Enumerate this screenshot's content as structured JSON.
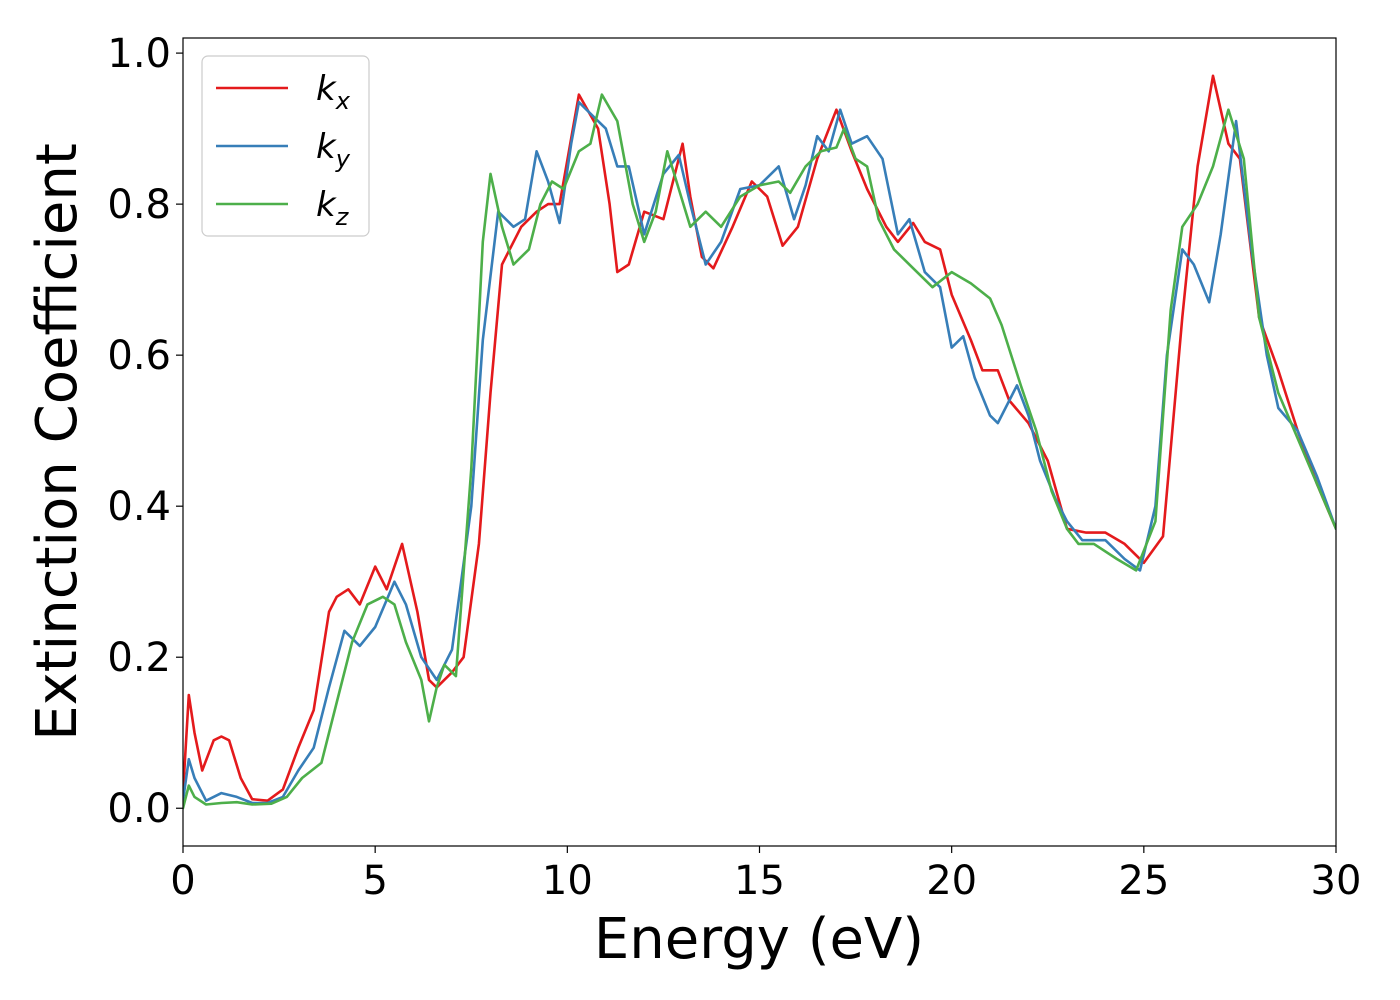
{
  "chart_data": {
    "type": "line",
    "title": "",
    "xlabel": "Energy (eV)",
    "ylabel": "Extinction Coefficient",
    "xlim": [
      0,
      30
    ],
    "ylim": [
      -0.05,
      1.02
    ],
    "xticks": [
      0,
      5,
      10,
      15,
      20,
      25,
      30
    ],
    "xtick_labels": [
      "0",
      "5",
      "10",
      "15",
      "20",
      "25",
      "30"
    ],
    "yticks": [
      0.0,
      0.2,
      0.4,
      0.6,
      0.8,
      1.0
    ],
    "ytick_labels": [
      "0.0",
      "0.2",
      "0.4",
      "0.6",
      "0.8",
      "1.0"
    ],
    "grid": false,
    "legend_position": "top-left",
    "series": [
      {
        "name": "k",
        "name_sub": "x",
        "color": "#e41a1c",
        "points": [
          [
            0,
            0.02
          ],
          [
            0.15,
            0.15
          ],
          [
            0.3,
            0.1
          ],
          [
            0.5,
            0.05
          ],
          [
            0.8,
            0.09
          ],
          [
            1.0,
            0.095
          ],
          [
            1.2,
            0.09
          ],
          [
            1.5,
            0.04
          ],
          [
            1.8,
            0.012
          ],
          [
            2.2,
            0.01
          ],
          [
            2.6,
            0.025
          ],
          [
            3.0,
            0.08
          ],
          [
            3.4,
            0.13
          ],
          [
            3.8,
            0.26
          ],
          [
            4.0,
            0.28
          ],
          [
            4.3,
            0.29
          ],
          [
            4.6,
            0.27
          ],
          [
            5.0,
            0.32
          ],
          [
            5.3,
            0.29
          ],
          [
            5.7,
            0.35
          ],
          [
            6.1,
            0.26
          ],
          [
            6.4,
            0.17
          ],
          [
            6.6,
            0.16
          ],
          [
            7.0,
            0.18
          ],
          [
            7.3,
            0.2
          ],
          [
            7.7,
            0.35
          ],
          [
            8.0,
            0.55
          ],
          [
            8.3,
            0.72
          ],
          [
            8.8,
            0.77
          ],
          [
            9.2,
            0.79
          ],
          [
            9.5,
            0.8
          ],
          [
            9.8,
            0.8
          ],
          [
            10.3,
            0.945
          ],
          [
            10.8,
            0.9
          ],
          [
            11.1,
            0.8
          ],
          [
            11.3,
            0.71
          ],
          [
            11.6,
            0.72
          ],
          [
            12.0,
            0.79
          ],
          [
            12.5,
            0.78
          ],
          [
            13.0,
            0.88
          ],
          [
            13.2,
            0.81
          ],
          [
            13.5,
            0.73
          ],
          [
            13.8,
            0.715
          ],
          [
            14.3,
            0.77
          ],
          [
            14.8,
            0.83
          ],
          [
            15.2,
            0.81
          ],
          [
            15.6,
            0.745
          ],
          [
            16.0,
            0.77
          ],
          [
            16.5,
            0.86
          ],
          [
            17.0,
            0.925
          ],
          [
            17.4,
            0.87
          ],
          [
            17.8,
            0.82
          ],
          [
            18.3,
            0.77
          ],
          [
            18.6,
            0.75
          ],
          [
            19.0,
            0.775
          ],
          [
            19.3,
            0.75
          ],
          [
            19.7,
            0.74
          ],
          [
            20.0,
            0.68
          ],
          [
            20.5,
            0.62
          ],
          [
            20.8,
            0.58
          ],
          [
            21.2,
            0.58
          ],
          [
            21.5,
            0.54
          ],
          [
            22.0,
            0.51
          ],
          [
            22.5,
            0.46
          ],
          [
            23.0,
            0.37
          ],
          [
            23.5,
            0.365
          ],
          [
            24.0,
            0.365
          ],
          [
            24.5,
            0.35
          ],
          [
            25.0,
            0.325
          ],
          [
            25.5,
            0.36
          ],
          [
            26.0,
            0.65
          ],
          [
            26.4,
            0.85
          ],
          [
            26.8,
            0.97
          ],
          [
            27.2,
            0.88
          ],
          [
            27.5,
            0.86
          ],
          [
            28.0,
            0.65
          ],
          [
            28.5,
            0.58
          ],
          [
            29.0,
            0.5
          ],
          [
            29.5,
            0.43
          ],
          [
            30.0,
            0.37
          ]
        ]
      },
      {
        "name": "k",
        "name_sub": "y",
        "color": "#377eb8",
        "points": [
          [
            0,
            0.01
          ],
          [
            0.15,
            0.065
          ],
          [
            0.3,
            0.04
          ],
          [
            0.6,
            0.01
          ],
          [
            1.0,
            0.02
          ],
          [
            1.4,
            0.015
          ],
          [
            1.8,
            0.007
          ],
          [
            2.2,
            0.007
          ],
          [
            2.6,
            0.015
          ],
          [
            3.0,
            0.05
          ],
          [
            3.4,
            0.08
          ],
          [
            3.8,
            0.16
          ],
          [
            4.2,
            0.235
          ],
          [
            4.6,
            0.215
          ],
          [
            5.0,
            0.24
          ],
          [
            5.5,
            0.3
          ],
          [
            5.8,
            0.27
          ],
          [
            6.2,
            0.2
          ],
          [
            6.6,
            0.17
          ],
          [
            7.0,
            0.21
          ],
          [
            7.5,
            0.4
          ],
          [
            7.8,
            0.62
          ],
          [
            8.2,
            0.79
          ],
          [
            8.6,
            0.77
          ],
          [
            8.9,
            0.78
          ],
          [
            9.2,
            0.87
          ],
          [
            9.5,
            0.83
          ],
          [
            9.8,
            0.775
          ],
          [
            10.1,
            0.88
          ],
          [
            10.3,
            0.935
          ],
          [
            10.7,
            0.915
          ],
          [
            11.0,
            0.9
          ],
          [
            11.3,
            0.85
          ],
          [
            11.6,
            0.85
          ],
          [
            12.0,
            0.76
          ],
          [
            12.5,
            0.84
          ],
          [
            12.9,
            0.865
          ],
          [
            13.2,
            0.8
          ],
          [
            13.6,
            0.72
          ],
          [
            14.0,
            0.75
          ],
          [
            14.5,
            0.82
          ],
          [
            15.0,
            0.825
          ],
          [
            15.5,
            0.85
          ],
          [
            15.9,
            0.78
          ],
          [
            16.2,
            0.825
          ],
          [
            16.5,
            0.89
          ],
          [
            16.8,
            0.87
          ],
          [
            17.1,
            0.925
          ],
          [
            17.4,
            0.88
          ],
          [
            17.8,
            0.89
          ],
          [
            18.2,
            0.86
          ],
          [
            18.6,
            0.76
          ],
          [
            18.9,
            0.78
          ],
          [
            19.3,
            0.71
          ],
          [
            19.7,
            0.69
          ],
          [
            20.0,
            0.61
          ],
          [
            20.3,
            0.625
          ],
          [
            20.6,
            0.57
          ],
          [
            21.0,
            0.52
          ],
          [
            21.2,
            0.51
          ],
          [
            21.7,
            0.56
          ],
          [
            22.0,
            0.52
          ],
          [
            22.3,
            0.46
          ],
          [
            22.7,
            0.41
          ],
          [
            23.0,
            0.38
          ],
          [
            23.4,
            0.355
          ],
          [
            24.0,
            0.355
          ],
          [
            24.5,
            0.33
          ],
          [
            24.9,
            0.315
          ],
          [
            25.3,
            0.4
          ],
          [
            25.6,
            0.6
          ],
          [
            26.0,
            0.74
          ],
          [
            26.3,
            0.72
          ],
          [
            26.7,
            0.67
          ],
          [
            27.0,
            0.76
          ],
          [
            27.4,
            0.91
          ],
          [
            27.8,
            0.74
          ],
          [
            28.2,
            0.6
          ],
          [
            28.5,
            0.53
          ],
          [
            29.0,
            0.5
          ],
          [
            29.5,
            0.44
          ],
          [
            30.0,
            0.37
          ]
        ]
      },
      {
        "name": "k",
        "name_sub": "z",
        "color": "#4daf4a",
        "points": [
          [
            0,
            0.0
          ],
          [
            0.15,
            0.03
          ],
          [
            0.3,
            0.015
          ],
          [
            0.6,
            0.005
          ],
          [
            1.0,
            0.007
          ],
          [
            1.4,
            0.008
          ],
          [
            1.8,
            0.005
          ],
          [
            2.3,
            0.006
          ],
          [
            2.7,
            0.015
          ],
          [
            3.1,
            0.04
          ],
          [
            3.6,
            0.06
          ],
          [
            4.0,
            0.14
          ],
          [
            4.4,
            0.22
          ],
          [
            4.8,
            0.27
          ],
          [
            5.2,
            0.28
          ],
          [
            5.5,
            0.27
          ],
          [
            5.8,
            0.22
          ],
          [
            6.2,
            0.17
          ],
          [
            6.4,
            0.115
          ],
          [
            6.6,
            0.16
          ],
          [
            6.8,
            0.19
          ],
          [
            7.1,
            0.175
          ],
          [
            7.5,
            0.45
          ],
          [
            7.8,
            0.75
          ],
          [
            8.0,
            0.84
          ],
          [
            8.3,
            0.77
          ],
          [
            8.6,
            0.72
          ],
          [
            9.0,
            0.74
          ],
          [
            9.3,
            0.8
          ],
          [
            9.6,
            0.83
          ],
          [
            9.9,
            0.82
          ],
          [
            10.3,
            0.87
          ],
          [
            10.6,
            0.88
          ],
          [
            10.9,
            0.945
          ],
          [
            11.3,
            0.91
          ],
          [
            11.7,
            0.8
          ],
          [
            12.0,
            0.75
          ],
          [
            12.3,
            0.79
          ],
          [
            12.6,
            0.87
          ],
          [
            12.9,
            0.82
          ],
          [
            13.2,
            0.77
          ],
          [
            13.6,
            0.79
          ],
          [
            14.0,
            0.77
          ],
          [
            14.5,
            0.81
          ],
          [
            15.0,
            0.825
          ],
          [
            15.5,
            0.83
          ],
          [
            15.8,
            0.815
          ],
          [
            16.2,
            0.85
          ],
          [
            16.6,
            0.87
          ],
          [
            17.0,
            0.875
          ],
          [
            17.2,
            0.9
          ],
          [
            17.5,
            0.86
          ],
          [
            17.8,
            0.85
          ],
          [
            18.1,
            0.78
          ],
          [
            18.5,
            0.74
          ],
          [
            19.0,
            0.715
          ],
          [
            19.5,
            0.69
          ],
          [
            20.0,
            0.71
          ],
          [
            20.5,
            0.695
          ],
          [
            21.0,
            0.675
          ],
          [
            21.3,
            0.64
          ],
          [
            21.8,
            0.56
          ],
          [
            22.2,
            0.5
          ],
          [
            22.6,
            0.42
          ],
          [
            23.0,
            0.37
          ],
          [
            23.3,
            0.35
          ],
          [
            23.7,
            0.35
          ],
          [
            24.3,
            0.33
          ],
          [
            24.8,
            0.315
          ],
          [
            25.3,
            0.38
          ],
          [
            25.7,
            0.66
          ],
          [
            26.0,
            0.77
          ],
          [
            26.4,
            0.8
          ],
          [
            26.8,
            0.85
          ],
          [
            27.2,
            0.925
          ],
          [
            27.6,
            0.86
          ],
          [
            28.0,
            0.65
          ],
          [
            28.5,
            0.55
          ],
          [
            29.0,
            0.49
          ],
          [
            29.5,
            0.43
          ],
          [
            30.0,
            0.37
          ]
        ]
      }
    ]
  }
}
